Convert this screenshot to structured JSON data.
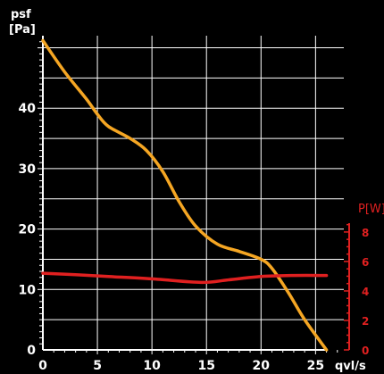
{
  "chart_data": {
    "type": "line",
    "title": "",
    "xlabel": "qvl/s",
    "ylabel_line1": "psf",
    "ylabel_line2": "[Pa]",
    "y2label": "P[W]",
    "xlim": [
      0,
      28
    ],
    "ylim": [
      0,
      52
    ],
    "y2lim": [
      0,
      8.6
    ],
    "x_ticks": [
      0,
      5,
      10,
      15,
      20,
      25
    ],
    "y_ticks": [
      0,
      10,
      20,
      30,
      40
    ],
    "y2_ticks": [
      0,
      2,
      4,
      6,
      8
    ],
    "grid": true,
    "series": [
      {
        "axis": "left",
        "color": "#f5a623",
        "points": [
          [
            0,
            51.2
          ],
          [
            2,
            46
          ],
          [
            4,
            41.5
          ],
          [
            5,
            39
          ],
          [
            6,
            37
          ],
          [
            8,
            35
          ],
          [
            9.5,
            33
          ],
          [
            11,
            29.5
          ],
          [
            12.5,
            24.5
          ],
          [
            14,
            20.5
          ],
          [
            16,
            17.5
          ],
          [
            18,
            16.3
          ],
          [
            20,
            15
          ],
          [
            21,
            13.5
          ],
          [
            22.5,
            9.5
          ],
          [
            24,
            5
          ],
          [
            26,
            0
          ]
        ]
      },
      {
        "axis": "right",
        "color": "#e02020",
        "points": [
          [
            0,
            5.2
          ],
          [
            3,
            5.1
          ],
          [
            6,
            4.98
          ],
          [
            10,
            4.82
          ],
          [
            14.5,
            4.58
          ],
          [
            17,
            4.75
          ],
          [
            20,
            4.98
          ],
          [
            23,
            5.05
          ],
          [
            26,
            5.05
          ]
        ]
      }
    ],
    "colors": {
      "background": "#000000",
      "grid": "#ffffff",
      "left_axis": "#ffffff",
      "right_axis": "#e02020"
    }
  }
}
